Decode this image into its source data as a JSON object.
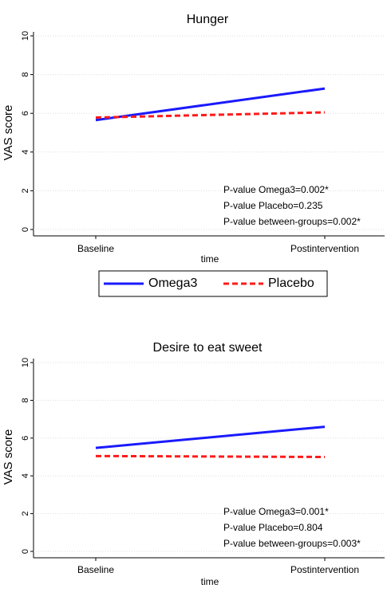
{
  "chart_data": [
    {
      "type": "line",
      "title": "Hunger",
      "x_label": "time",
      "y_label": "VAS score",
      "categories": [
        "Baseline",
        "Postintervention"
      ],
      "series": [
        {
          "name": "Omega3",
          "color": "#1a1aff",
          "style": "solid",
          "values": [
            5.65,
            7.28
          ]
        },
        {
          "name": "Placebo",
          "color": "#ff1a1a",
          "style": "dashed",
          "values": [
            5.78,
            6.05
          ]
        }
      ],
      "ylim": [
        0,
        10
      ],
      "yticks": [
        0,
        2,
        4,
        6,
        8,
        10
      ],
      "grid": true,
      "legend": "bottom",
      "annotations": [
        "P-value Omega3=0.002*",
        "P-value Placebo=0.235",
        "P-value between-groups=0.002*"
      ]
    },
    {
      "type": "line",
      "title": "Desire to eat sweet",
      "x_label": "time",
      "y_label": "VAS score",
      "categories": [
        "Baseline",
        "Postintervention"
      ],
      "series": [
        {
          "name": "Omega3",
          "color": "#1a1aff",
          "style": "solid",
          "values": [
            5.48,
            6.6
          ]
        },
        {
          "name": "Placebo",
          "color": "#ff1a1a",
          "style": "dashed",
          "values": [
            5.05,
            5.0
          ]
        }
      ],
      "ylim": [
        0,
        10
      ],
      "yticks": [
        0,
        2,
        4,
        6,
        8,
        10
      ],
      "grid": true,
      "annotations": [
        "P-value Omega3=0.001*",
        "P-value Placebo=0.804",
        "P-value between-groups=0.003*"
      ]
    }
  ]
}
